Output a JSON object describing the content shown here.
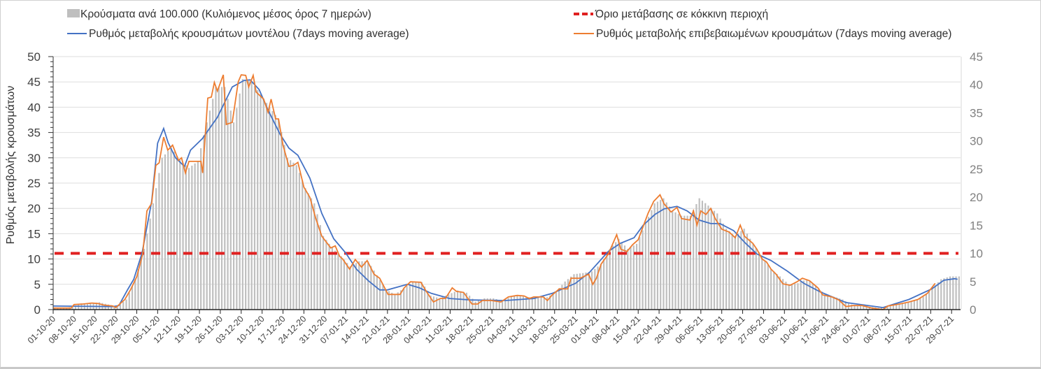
{
  "chart_data": {
    "type": "bar+line",
    "legend_position": "top",
    "legend": {
      "bars": "Κρούσματα ανά 100.000 (Κυλιόμενος μέσος όρος 7 ημερών)",
      "threshold": "Όριο μετάβασης σε κόκκινη περιοχή",
      "model": "Ρυθμός μεταβολής κρουσμάτων μοντέλου (7days moving average)",
      "confirmed": "Ρυθμός μεταβολής επιβεβαιωμένων κρουσμάτων (7days moving average)"
    },
    "ylabel": "Ρυθμός μεταβολής κρουσμάτων",
    "y_left": {
      "min": 0,
      "max": 50,
      "ticks": [
        "0",
        "5",
        "10",
        "15",
        "20",
        "25",
        "30",
        "35",
        "40",
        "45",
        "50"
      ]
    },
    "y_right": {
      "min": 0,
      "max": 45,
      "ticks": [
        "0",
        "5",
        "10",
        "15",
        "20",
        "25",
        "30",
        "35",
        "40",
        "45"
      ]
    },
    "grid": true,
    "x_unit": "days since 01-10-20",
    "x_range_days": [
      0,
      303
    ],
    "x_tick_step_days": 7,
    "x_ticks": [
      "01-10-20",
      "08-10-20",
      "15-10-20",
      "22-10-20",
      "29-10-20",
      "05-11-20",
      "12-11-20",
      "19-11-20",
      "26-11-20",
      "03-12-20",
      "10-12-20",
      "17-12-20",
      "24-12-20",
      "31-12-20",
      "07-01-21",
      "14-01-21",
      "21-01-21",
      "28-01-21",
      "04-02-21",
      "11-02-21",
      "18-02-21",
      "25-02-21",
      "04-03-21",
      "11-03-21",
      "18-03-21",
      "25-03-21",
      "01-04-21",
      "08-04-21",
      "15-04-21",
      "22-04-21",
      "29-04-21",
      "06-05-21",
      "13-05-21",
      "20-05-21",
      "27-05-21",
      "03-06-21",
      "10-06-21",
      "17-06-21",
      "24-06-21",
      "01-07-21",
      "08-07-21",
      "15-07-21",
      "22-07-21",
      "29-07-21"
    ],
    "threshold": {
      "axis": "right",
      "value": 10,
      "color": "#e02020"
    },
    "colors": {
      "bars": "#bfbfbf",
      "model": "#4472c4",
      "confirmed": "#ed7d31",
      "threshold": "#e02020"
    },
    "bars": {
      "axis": "right",
      "step_days": 3,
      "values": [
        0.3,
        0.3,
        0.5,
        1.1,
        1.1,
        1.3,
        0.9,
        0.6,
        1.8,
        5.4,
        10.8,
        18.9,
        27,
        28.8,
        26.6,
        25.2,
        26.4,
        33.3,
        39.6,
        39.6,
        33.3,
        41,
        40.5,
        38.3,
        36,
        33.9,
        27,
        25.7,
        21.6,
        18.9,
        13.1,
        11,
        9.5,
        7.7,
        8.6,
        8.6,
        6.1,
        3.6,
        2.7,
        3.8,
        5,
        4.9,
        2.5,
        2,
        2.7,
        3.4,
        3,
        1.4,
        2,
        2,
        1.6,
        2.3,
        2.5,
        2.2,
        2.3,
        2.2,
        3.2,
        5,
        6.3,
        6.5,
        6.8,
        8.1,
        10.8,
        12.6,
        10.8,
        11.7,
        15.3,
        18.9,
        19.8,
        17.6,
        16.7,
        16.7,
        19.8,
        18.5,
        17.1,
        14.4,
        13.1,
        14.4,
        11.7,
        9.5,
        7.2,
        5.9,
        4.5,
        4.7,
        5.4,
        4.3,
        2.7,
        2.3,
        1.8,
        0.9,
        0.7,
        0.5,
        0.3,
        0.5,
        0.9,
        1.3,
        1.6,
        2.3,
        3.8,
        5.4,
        5.9,
        5.9
      ]
    },
    "model": {
      "axis": "left",
      "points": [
        [
          0,
          0.7
        ],
        [
          20,
          0.6
        ],
        [
          22,
          0.8
        ],
        [
          25,
          4
        ],
        [
          27,
          6
        ],
        [
          29.8,
          11.2
        ],
        [
          33,
          21.4
        ],
        [
          35,
          32.9
        ],
        [
          37,
          35.8
        ],
        [
          38.5,
          33
        ],
        [
          41,
          30
        ],
        [
          44,
          28.3
        ],
        [
          46,
          31.5
        ],
        [
          50,
          33.8
        ],
        [
          55,
          38
        ],
        [
          60,
          44
        ],
        [
          64,
          45.3
        ],
        [
          66,
          45.4
        ],
        [
          69,
          43.5
        ],
        [
          72,
          39.4
        ],
        [
          76,
          34.7
        ],
        [
          79,
          31.9
        ],
        [
          82,
          30.5
        ],
        [
          86,
          26
        ],
        [
          90,
          19
        ],
        [
          94,
          14
        ],
        [
          98,
          11.2
        ],
        [
          101.6,
          8
        ],
        [
          105.6,
          5.7
        ],
        [
          109.4,
          3.9
        ],
        [
          112,
          3.9
        ],
        [
          118.7,
          5
        ],
        [
          122.7,
          4.3
        ],
        [
          126.7,
          3.2
        ],
        [
          132.8,
          2.2
        ],
        [
          139.8,
          1.9
        ],
        [
          151.5,
          1.8
        ],
        [
          161,
          2.2
        ],
        [
          167.2,
          3.2
        ],
        [
          175,
          5.2
        ],
        [
          179.6,
          7.3
        ],
        [
          186,
          11.5
        ],
        [
          190,
          13.1
        ],
        [
          194.6,
          14.2
        ],
        [
          197.7,
          16.7
        ],
        [
          201.6,
          18.8
        ],
        [
          204.7,
          19.9
        ],
        [
          209,
          20.4
        ],
        [
          212.4,
          19.5
        ],
        [
          216.4,
          17.7
        ],
        [
          220.3,
          17
        ],
        [
          223.4,
          17
        ],
        [
          228,
          15.6
        ],
        [
          232,
          13.1
        ],
        [
          235.8,
          11
        ],
        [
          240.5,
          9.7
        ],
        [
          246,
          7.6
        ],
        [
          251.5,
          5.2
        ],
        [
          257,
          3.5
        ],
        [
          265.6,
          1.4
        ],
        [
          278,
          0.4
        ],
        [
          286.7,
          2
        ],
        [
          294.4,
          4.1
        ],
        [
          298.4,
          5.8
        ],
        [
          302,
          6.1
        ],
        [
          303,
          6
        ]
      ]
    },
    "confirmed": {
      "axis": "left",
      "points": [
        [
          0,
          0.3
        ],
        [
          6,
          0.3
        ],
        [
          7,
          1.0
        ],
        [
          10,
          1.1
        ],
        [
          13,
          1.3
        ],
        [
          15,
          1.2
        ],
        [
          17,
          0.9
        ],
        [
          20,
          0.7
        ],
        [
          21,
          0.4
        ],
        [
          24,
          2
        ],
        [
          26,
          4
        ],
        [
          28,
          6.5
        ],
        [
          30,
          11
        ],
        [
          31.4,
          19.5
        ],
        [
          33,
          21
        ],
        [
          34.4,
          28.5
        ],
        [
          35.5,
          29
        ],
        [
          37,
          34.1
        ],
        [
          38.4,
          31.5
        ],
        [
          40,
          32.5
        ],
        [
          42,
          29.5
        ],
        [
          43,
          30
        ],
        [
          44.3,
          27
        ],
        [
          45.5,
          29.3
        ],
        [
          49.5,
          29.3
        ],
        [
          50.1,
          27
        ],
        [
          51.8,
          41.8
        ],
        [
          53,
          42
        ],
        [
          54,
          44.9
        ],
        [
          55,
          43.2
        ],
        [
          57,
          46.4
        ],
        [
          58,
          36.6
        ],
        [
          60,
          37
        ],
        [
          62,
          45
        ],
        [
          63,
          46.4
        ],
        [
          64.5,
          46.3
        ],
        [
          65.5,
          44
        ],
        [
          67,
          46.3
        ],
        [
          68,
          43
        ],
        [
          70.5,
          41.6
        ],
        [
          72,
          39
        ],
        [
          73,
          41.6
        ],
        [
          74.5,
          37.7
        ],
        [
          75.5,
          37.7
        ],
        [
          77,
          32.5
        ],
        [
          79,
          28.3
        ],
        [
          80.5,
          28.5
        ],
        [
          82,
          29.1
        ],
        [
          84,
          24.2
        ],
        [
          86,
          22.2
        ],
        [
          88,
          18
        ],
        [
          90,
          14.5
        ],
        [
          93,
          12.2
        ],
        [
          94.5,
          12.6
        ],
        [
          96,
          10.5
        ],
        [
          97,
          10
        ],
        [
          99.3,
          8
        ],
        [
          101.2,
          9.9
        ],
        [
          103.3,
          8.4
        ],
        [
          105.2,
          9.7
        ],
        [
          107.5,
          7
        ],
        [
          109.4,
          6.2
        ],
        [
          112.2,
          3
        ],
        [
          116.2,
          3
        ],
        [
          117.6,
          4.3
        ],
        [
          119.7,
          5.5
        ],
        [
          123.2,
          5.4
        ],
        [
          125,
          3.6
        ],
        [
          127.4,
          1.5
        ],
        [
          129.7,
          2.2
        ],
        [
          131.4,
          2.2
        ],
        [
          133.7,
          4.3
        ],
        [
          135.1,
          3.6
        ],
        [
          137.5,
          3.4
        ],
        [
          140.3,
          1.1
        ],
        [
          142.2,
          1.1
        ],
        [
          143.8,
          1.8
        ],
        [
          146.8,
          1.8
        ],
        [
          150,
          1.5
        ],
        [
          152.5,
          2.5
        ],
        [
          155.5,
          2.8
        ],
        [
          157.8,
          2.7
        ],
        [
          159.5,
          2.2
        ],
        [
          161,
          2.5
        ],
        [
          164.2,
          2.5
        ],
        [
          165.6,
          1.8
        ],
        [
          167.2,
          2.9
        ],
        [
          169.6,
          4.1
        ],
        [
          172.4,
          4.1
        ],
        [
          173.5,
          6.2
        ],
        [
          176.6,
          6.2
        ],
        [
          179.4,
          7
        ],
        [
          180.8,
          5
        ],
        [
          182,
          6.2
        ],
        [
          183.6,
          9
        ],
        [
          186,
          11
        ],
        [
          188.8,
          14.8
        ],
        [
          190.2,
          11.9
        ],
        [
          192.3,
          11.5
        ],
        [
          194.1,
          12.8
        ],
        [
          196,
          13.8
        ],
        [
          199.3,
          19
        ],
        [
          201.2,
          21.4
        ],
        [
          203.3,
          22.7
        ],
        [
          204.7,
          20.9
        ],
        [
          207,
          19.3
        ],
        [
          209,
          20.2
        ],
        [
          210.5,
          18
        ],
        [
          213.3,
          17.7
        ],
        [
          214.5,
          19.5
        ],
        [
          215.7,
          16.7
        ],
        [
          217,
          19.5
        ],
        [
          218.7,
          18.8
        ],
        [
          220.3,
          20
        ],
        [
          221.8,
          18
        ],
        [
          224,
          15.9
        ],
        [
          226.5,
          15.3
        ],
        [
          228.5,
          14.2
        ],
        [
          230.2,
          16.7
        ],
        [
          231.6,
          14.5
        ],
        [
          234.4,
          13.1
        ],
        [
          235.8,
          11.9
        ],
        [
          237.5,
          10
        ],
        [
          239,
          9.4
        ],
        [
          240.5,
          8
        ],
        [
          242.2,
          7
        ],
        [
          244.5,
          5.1
        ],
        [
          246.9,
          4.8
        ],
        [
          249.2,
          5.5
        ],
        [
          251,
          6.2
        ],
        [
          253.4,
          5.7
        ],
        [
          256.2,
          4.3
        ],
        [
          257.8,
          2.9
        ],
        [
          260.9,
          2.5
        ],
        [
          263.2,
          1.9
        ],
        [
          265.6,
          0.6
        ],
        [
          268,
          0.8
        ],
        [
          271,
          0.8
        ],
        [
          274.2,
          0.3
        ],
        [
          278,
          0
        ],
        [
          279.6,
          0.7
        ],
        [
          283.6,
          1.1
        ],
        [
          286.7,
          1.5
        ],
        [
          289.7,
          2
        ],
        [
          292.9,
          3.2
        ],
        [
          295.5,
          5.2
        ]
      ]
    }
  }
}
